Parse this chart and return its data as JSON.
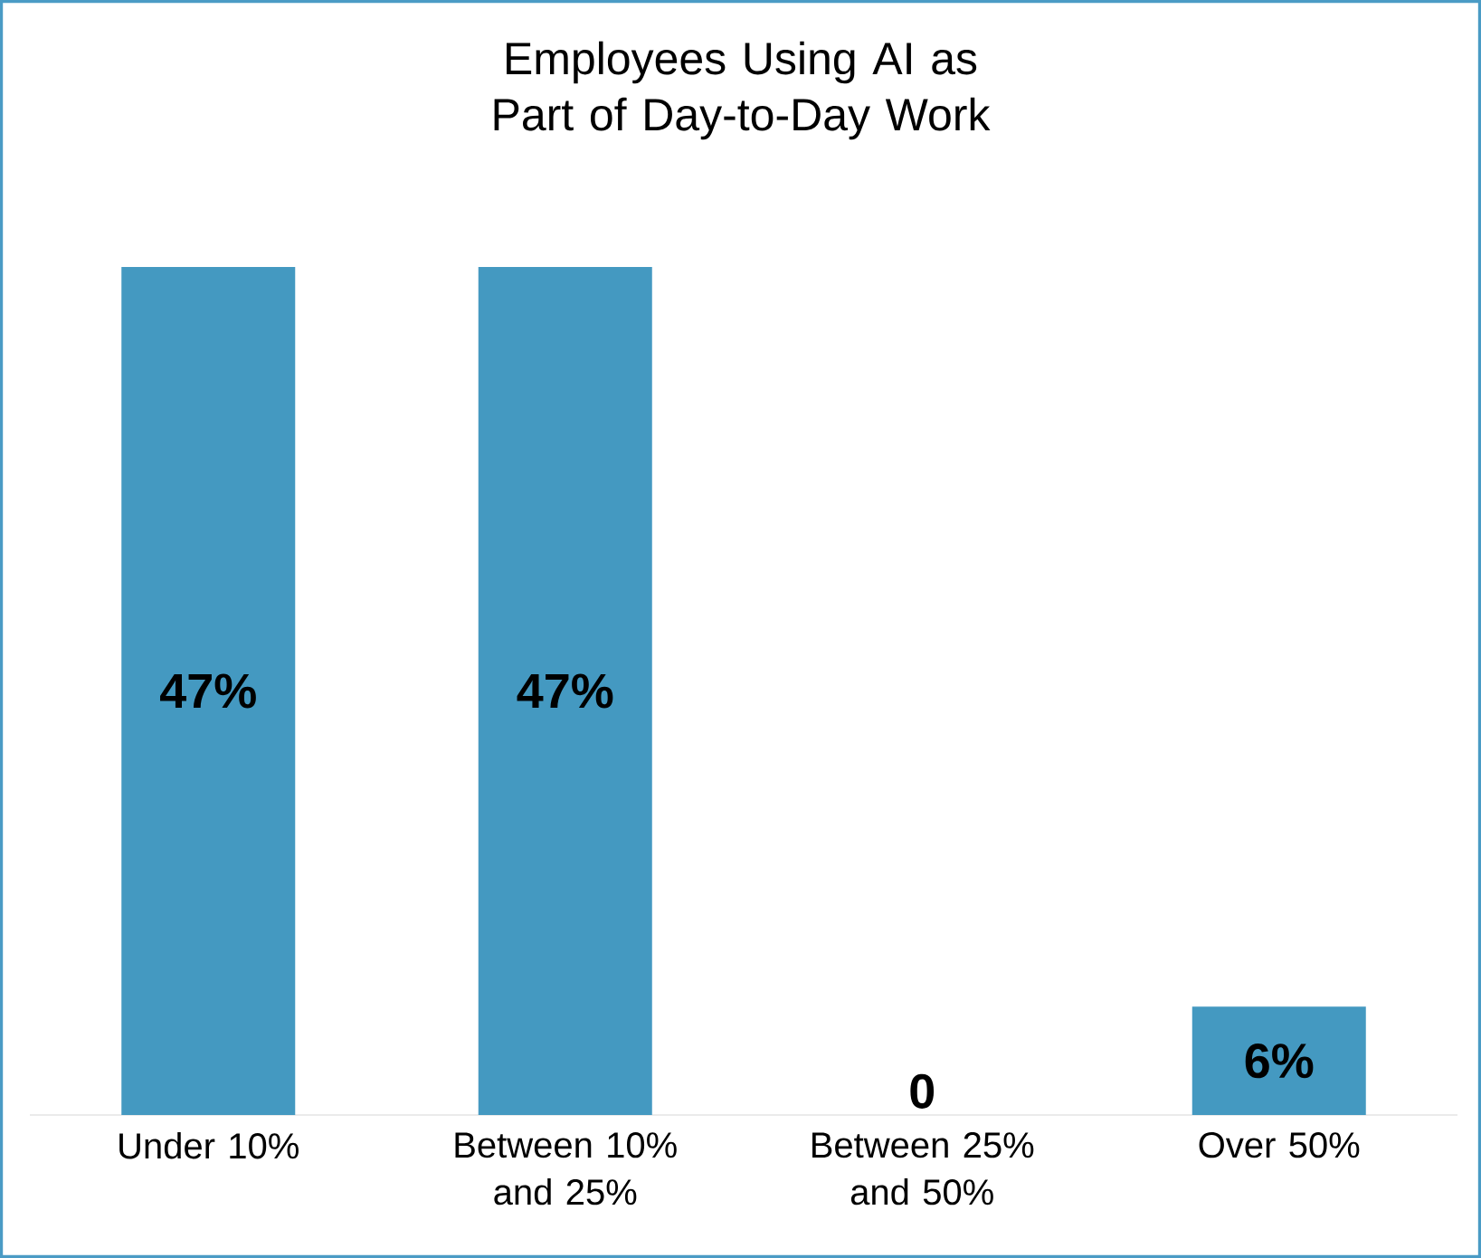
{
  "chart_data": {
    "type": "bar",
    "title": "Employees Using AI as Part of Day-to-Day Work",
    "categories": [
      "Under 10%",
      "Between 10% and 25%",
      "Between 25% and 50%",
      "Over 50%"
    ],
    "values": [
      47,
      47,
      0,
      6
    ],
    "value_labels": [
      "47%",
      "47%",
      "0",
      "6%"
    ],
    "color": "#4499c1"
  }
}
